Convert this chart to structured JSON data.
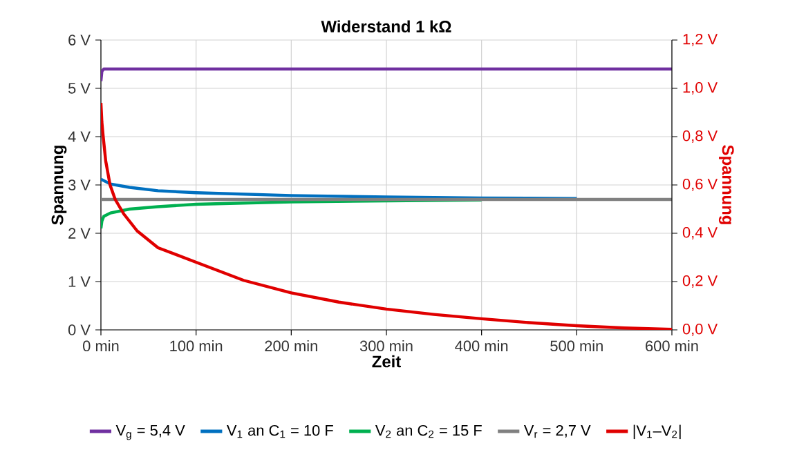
{
  "chart_data": {
    "type": "line",
    "title": "Widerstand 1 kΩ",
    "xlabel": "Zeit",
    "ylabel": "Spannung",
    "y2label": "Spannung",
    "xlim": [
      0,
      600
    ],
    "xticks": [
      {
        "value": 0,
        "label": "0 min"
      },
      {
        "value": 100,
        "label": "100 min"
      },
      {
        "value": 200,
        "label": "200 min"
      },
      {
        "value": 300,
        "label": "300 min"
      },
      {
        "value": 400,
        "label": "400 min"
      },
      {
        "value": 500,
        "label": "500 min"
      },
      {
        "value": 600,
        "label": "600 min"
      }
    ],
    "ylim": [
      0,
      6
    ],
    "yticks": [
      {
        "value": 0,
        "label": "0 V"
      },
      {
        "value": 1,
        "label": "1 V"
      },
      {
        "value": 2,
        "label": "2 V"
      },
      {
        "value": 3,
        "label": "3 V"
      },
      {
        "value": 4,
        "label": "4 V"
      },
      {
        "value": 5,
        "label": "5 V"
      },
      {
        "value": 6,
        "label": "6 V"
      }
    ],
    "y2lim": [
      0,
      1.2
    ],
    "y2ticks": [
      {
        "value": 0,
        "label": "0,0 V"
      },
      {
        "value": 0.2,
        "label": "0,2 V"
      },
      {
        "value": 0.4,
        "label": "0,4 V"
      },
      {
        "value": 0.6,
        "label": "0,6 V"
      },
      {
        "value": 0.8,
        "label": "0,8 V"
      },
      {
        "value": 1.0,
        "label": "1,0 V"
      },
      {
        "value": 1.2,
        "label": "1,2 V"
      }
    ],
    "grid": true,
    "legend": "bottom",
    "marker": "none",
    "line_style": "solid",
    "series": [
      {
        "name": "V$_{g}$ = 5,4 V",
        "color": "#7030a0",
        "x": [
          0,
          1,
          3,
          600
        ],
        "values": [
          5.15,
          5.35,
          5.4,
          5.4
        ]
      },
      {
        "name": "V$_{1}$ an C$_{1}$ = 10 F",
        "color": "#0070c0",
        "x": [
          0,
          10,
          30,
          60,
          100,
          200,
          300,
          400,
          500
        ],
        "values": [
          3.12,
          3.02,
          2.95,
          2.88,
          2.84,
          2.78,
          2.75,
          2.73,
          2.72
        ]
      },
      {
        "name": "V$_{2}$ an C$_{2}$ = 15 F",
        "color": "#00b050",
        "x": [
          0,
          1,
          3,
          10,
          30,
          60,
          100,
          200,
          300,
          400
        ],
        "values": [
          2.1,
          2.25,
          2.35,
          2.42,
          2.5,
          2.55,
          2.6,
          2.65,
          2.67,
          2.69
        ]
      },
      {
        "name": "V$_{r}$ = 2,7 V",
        "color": "#808080",
        "x": [
          0,
          600
        ],
        "values": [
          2.7,
          2.7
        ]
      },
      {
        "name": "|V$_{1}$–V$_{2}$|",
        "color": "#e00000",
        "axis": "y2",
        "x": [
          0,
          1,
          2.4,
          5,
          9.6,
          15,
          24,
          38,
          60,
          100,
          150,
          200,
          250,
          300,
          350,
          400,
          450,
          500,
          550,
          600
        ],
        "values": [
          0.94,
          0.86,
          0.8,
          0.7,
          0.6,
          0.54,
          0.48,
          0.41,
          0.34,
          0.28,
          0.205,
          0.153,
          0.115,
          0.086,
          0.064,
          0.046,
          0.03,
          0.017,
          0.008,
          0.002
        ]
      }
    ]
  }
}
